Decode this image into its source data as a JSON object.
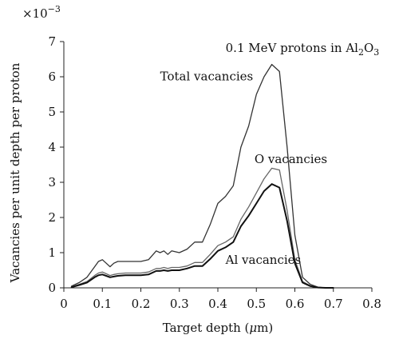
{
  "chart_data": {
    "type": "line",
    "title": "",
    "xlabel_parts": {
      "before": "Target depth (",
      "unit": "μ",
      "after": "m)"
    },
    "ylabel": "Vacancies per unit depth per proton",
    "y_multiplier": {
      "base": "×10",
      "exp": "−3"
    },
    "annotation": {
      "before": "0.1 MeV protons in Al",
      "sub1": "2",
      "mid": "O",
      "sub2": "3"
    },
    "xlim": [
      0,
      0.8
    ],
    "ylim": [
      0,
      7
    ],
    "x_ticks": [
      "0",
      "0.1",
      "0.2",
      "0.3",
      "0.4",
      "0.5",
      "0.6",
      "0.7",
      "0.8"
    ],
    "y_ticks": [
      "0",
      "1",
      "2",
      "3",
      "4",
      "5",
      "6",
      "7"
    ],
    "x_tick_values": [
      0,
      0.1,
      0.2,
      0.3,
      0.4,
      0.5,
      0.6,
      0.7,
      0.8
    ],
    "y_tick_values": [
      0,
      1,
      2,
      3,
      4,
      5,
      6,
      7
    ],
    "series": [
      {
        "name": "Total vacancies",
        "color": "#333333",
        "x": [
          0.02,
          0.04,
          0.06,
          0.08,
          0.09,
          0.1,
          0.11,
          0.12,
          0.13,
          0.14,
          0.16,
          0.18,
          0.2,
          0.22,
          0.24,
          0.25,
          0.26,
          0.27,
          0.28,
          0.3,
          0.32,
          0.34,
          0.36,
          0.38,
          0.4,
          0.42,
          0.44,
          0.46,
          0.48,
          0.5,
          0.52,
          0.54,
          0.56,
          0.58,
          0.6,
          0.62,
          0.64,
          0.66,
          0.68,
          0.7
        ],
        "y": [
          0.05,
          0.15,
          0.3,
          0.6,
          0.75,
          0.8,
          0.7,
          0.6,
          0.7,
          0.75,
          0.75,
          0.75,
          0.75,
          0.8,
          1.05,
          1.0,
          1.05,
          0.95,
          1.05,
          1.0,
          1.1,
          1.3,
          1.3,
          1.8,
          2.4,
          2.6,
          2.9,
          4.0,
          4.6,
          5.5,
          6.0,
          6.35,
          6.15,
          4.0,
          1.5,
          0.3,
          0.1,
          0.02,
          0.0,
          0.0
        ]
      },
      {
        "name": "O vacancies",
        "color": "#666666",
        "x": [
          0.02,
          0.04,
          0.06,
          0.08,
          0.09,
          0.1,
          0.11,
          0.12,
          0.13,
          0.14,
          0.16,
          0.18,
          0.2,
          0.22,
          0.24,
          0.25,
          0.26,
          0.27,
          0.28,
          0.3,
          0.32,
          0.34,
          0.36,
          0.38,
          0.4,
          0.42,
          0.44,
          0.46,
          0.48,
          0.5,
          0.52,
          0.54,
          0.56,
          0.58,
          0.6,
          0.62,
          0.64,
          0.66,
          0.68,
          0.7
        ],
        "y": [
          0.03,
          0.1,
          0.18,
          0.35,
          0.42,
          0.45,
          0.4,
          0.35,
          0.38,
          0.4,
          0.42,
          0.42,
          0.42,
          0.45,
          0.55,
          0.55,
          0.58,
          0.55,
          0.58,
          0.58,
          0.62,
          0.72,
          0.72,
          0.95,
          1.2,
          1.3,
          1.45,
          1.95,
          2.3,
          2.7,
          3.1,
          3.4,
          3.35,
          2.2,
          0.8,
          0.18,
          0.06,
          0.01,
          0.0,
          0.0
        ]
      },
      {
        "name": "Al vacancies",
        "color": "#111111",
        "x": [
          0.02,
          0.04,
          0.06,
          0.08,
          0.09,
          0.1,
          0.11,
          0.12,
          0.13,
          0.14,
          0.16,
          0.18,
          0.2,
          0.22,
          0.24,
          0.25,
          0.26,
          0.27,
          0.28,
          0.3,
          0.32,
          0.34,
          0.36,
          0.38,
          0.4,
          0.42,
          0.44,
          0.46,
          0.48,
          0.5,
          0.52,
          0.54,
          0.56,
          0.58,
          0.6,
          0.62,
          0.64,
          0.66,
          0.68,
          0.7
        ],
        "y": [
          0.02,
          0.08,
          0.15,
          0.3,
          0.36,
          0.38,
          0.34,
          0.3,
          0.32,
          0.34,
          0.36,
          0.36,
          0.36,
          0.38,
          0.48,
          0.48,
          0.5,
          0.48,
          0.5,
          0.5,
          0.55,
          0.62,
          0.62,
          0.82,
          1.05,
          1.15,
          1.3,
          1.75,
          2.05,
          2.4,
          2.75,
          2.95,
          2.85,
          1.9,
          0.7,
          0.15,
          0.05,
          0.01,
          0.0,
          0.0
        ]
      }
    ],
    "series_labels": [
      {
        "series": 0,
        "text": "Total vacancies",
        "anchor_x": 0.25,
        "anchor_y": 5.9
      },
      {
        "series": 1,
        "text": "O vacancies",
        "anchor_x": 0.495,
        "anchor_y": 3.55
      },
      {
        "series": 2,
        "text": "Al vacancies",
        "anchor_x": 0.42,
        "anchor_y": 0.68
      }
    ],
    "annotation_anchor": {
      "x": 0.42,
      "y": 6.7
    },
    "grid": false,
    "legend": "none"
  }
}
